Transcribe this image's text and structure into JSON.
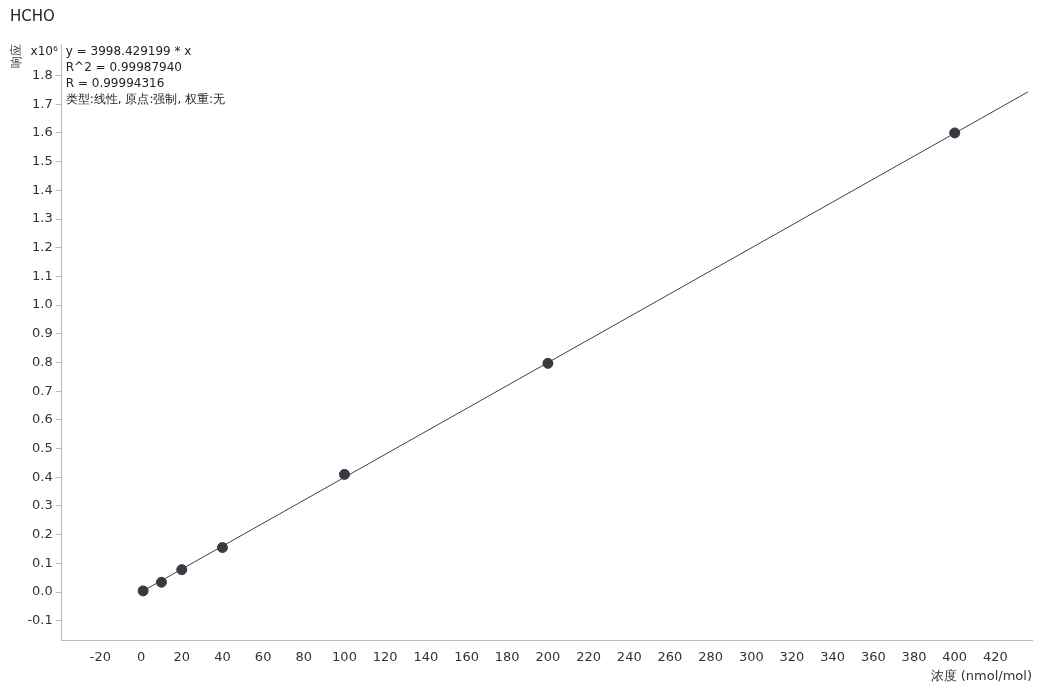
{
  "chart_data": {
    "type": "scatter",
    "title": "HCHO",
    "xlabel": "浓度 (nmol/mol)",
    "ylabel": "响应",
    "annotations": [
      "x10⁶",
      "y = 3998.429199 * x",
      "R^2 = 0.99987940",
      "R = 0.99994316",
      "类型:线性, 原点:强制, 权重:无"
    ],
    "x": [
      1,
      10,
      20,
      40,
      100,
      200,
      400
    ],
    "series": [
      {
        "color": "#373a40",
        "values": [
          0.004,
          0.034,
          0.078,
          0.155,
          0.41,
          0.797,
          1.6
        ],
        "marker": "circle"
      },
      {
        "type": "line",
        "color": "#404040",
        "x": [
          1,
          436
        ],
        "values": [
          0.004,
          1.743
        ],
        "marker": "none"
      }
    ],
    "xlim": [
      -39,
      438
    ],
    "xticks": [
      -20,
      0,
      20,
      40,
      60,
      80,
      100,
      120,
      140,
      160,
      180,
      200,
      220,
      240,
      260,
      280,
      300,
      320,
      340,
      360,
      380,
      400,
      420
    ],
    "ylim": [
      -0.17,
      1.91
    ],
    "yticks": [
      {
        "value": -0.1,
        "label": "-0.1"
      },
      {
        "value": 0,
        "label": "0.0"
      },
      {
        "value": 0.1,
        "label": "0.1"
      },
      {
        "value": 0.2,
        "label": "0.2"
      },
      {
        "value": 0.3,
        "label": "0.3"
      },
      {
        "value": 0.4,
        "label": "0.4"
      },
      {
        "value": 0.5,
        "label": "0.5"
      },
      {
        "value": 0.6,
        "label": "0.6"
      },
      {
        "value": 0.7,
        "label": "0.7"
      },
      {
        "value": 0.8,
        "label": "0.8"
      },
      {
        "value": 0.9,
        "label": "0.9"
      },
      {
        "value": 1,
        "label": "1.0"
      },
      {
        "value": 1.1,
        "label": "1.1"
      },
      {
        "value": 1.2,
        "label": "1.2"
      },
      {
        "value": 1.3,
        "label": "1.3"
      },
      {
        "value": 1.4,
        "label": "1.4"
      },
      {
        "value": 1.5,
        "label": "1.5"
      },
      {
        "value": 1.6,
        "label": "1.6"
      },
      {
        "value": 1.7,
        "label": "1.7"
      },
      {
        "value": 1.8,
        "label": "1.8"
      }
    ],
    "grid": false,
    "legend": false
  }
}
